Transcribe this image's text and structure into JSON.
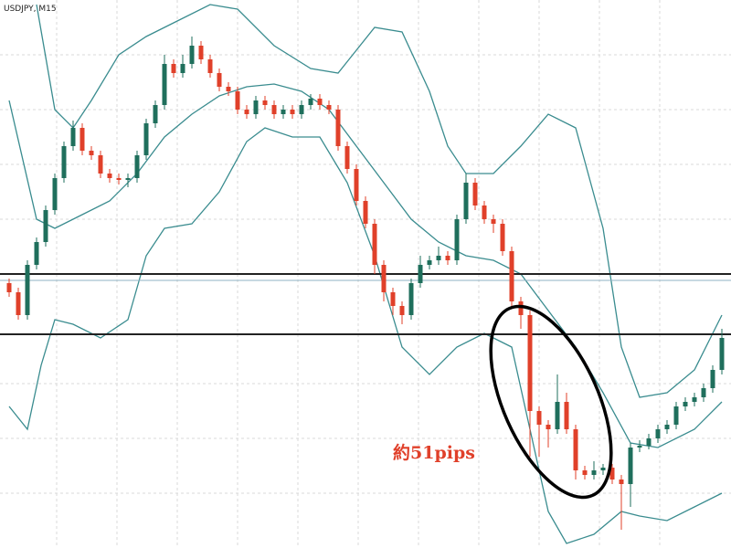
{
  "chart_data": {
    "type": "candlestick",
    "title": "USDJPY, M15",
    "annotation": "約51pips",
    "annotation_color": "#e0402a",
    "xlim": [
      0,
      80
    ],
    "ylim": [
      0,
      600
    ],
    "up_color": "#1f6f5c",
    "down_color": "#e0402a",
    "open": [
      290,
      280,
      255,
      310,
      335,
      370,
      405,
      440,
      460,
      435,
      430,
      410,
      405,
      403,
      405,
      430,
      465,
      485,
      530,
      520,
      530,
      550,
      535,
      520,
      505,
      500,
      480,
      475,
      490,
      485,
      475,
      480,
      475,
      485,
      492,
      485,
      480,
      440,
      415,
      380,
      355,
      310,
      280,
      265,
      255,
      290,
      310,
      315,
      320,
      315,
      360,
      400,
      375,
      360,
      355,
      325,
      270,
      255,
      150,
      135,
      130,
      160,
      130,
      85,
      80,
      85,
      88,
      75,
      70,
      110,
      112,
      120,
      130,
      135,
      155,
      160,
      165,
      175,
      195
    ],
    "high": [
      295,
      285,
      315,
      340,
      375,
      410,
      445,
      468,
      465,
      440,
      435,
      415,
      410,
      410,
      435,
      470,
      490,
      540,
      535,
      540,
      560,
      555,
      540,
      525,
      510,
      505,
      485,
      495,
      495,
      490,
      485,
      485,
      490,
      497,
      497,
      490,
      485,
      445,
      420,
      385,
      360,
      315,
      285,
      270,
      295,
      320,
      320,
      330,
      325,
      365,
      410,
      405,
      380,
      365,
      360,
      330,
      275,
      260,
      155,
      140,
      190,
      170,
      135,
      90,
      95,
      92,
      92,
      80,
      115,
      118,
      125,
      135,
      140,
      160,
      165,
      170,
      180,
      200,
      240
    ],
    "low": [
      275,
      250,
      250,
      305,
      330,
      365,
      400,
      435,
      430,
      425,
      405,
      400,
      398,
      395,
      400,
      425,
      460,
      480,
      515,
      515,
      525,
      530,
      515,
      500,
      495,
      475,
      470,
      470,
      480,
      470,
      470,
      470,
      470,
      480,
      480,
      475,
      435,
      410,
      375,
      350,
      300,
      270,
      255,
      245,
      250,
      285,
      305,
      310,
      310,
      310,
      355,
      370,
      355,
      345,
      320,
      265,
      240,
      100,
      100,
      110,
      125,
      125,
      75,
      75,
      75,
      80,
      70,
      20,
      45,
      105,
      108,
      115,
      125,
      130,
      150,
      155,
      160,
      170,
      190
    ],
    "close": [
      280,
      255,
      310,
      335,
      370,
      405,
      440,
      460,
      435,
      430,
      410,
      405,
      403,
      405,
      430,
      465,
      485,
      530,
      520,
      530,
      550,
      535,
      520,
      505,
      500,
      480,
      475,
      490,
      485,
      475,
      480,
      475,
      485,
      492,
      485,
      480,
      440,
      415,
      380,
      355,
      310,
      280,
      265,
      255,
      290,
      310,
      315,
      320,
      315,
      360,
      400,
      375,
      360,
      355,
      325,
      270,
      255,
      150,
      135,
      130,
      160,
      130,
      85,
      80,
      85,
      88,
      75,
      70,
      110,
      112,
      120,
      130,
      135,
      155,
      160,
      165,
      175,
      195,
      230
    ],
    "series": [
      {
        "color": "#3a8c8f",
        "x": [
          4,
          6,
          8,
          10,
          13,
          16,
          19,
          23,
          26,
          30,
          34,
          37,
          39,
          41,
          44,
          47,
          49,
          51,
          54,
          57,
          60,
          63,
          66,
          68,
          70,
          73,
          76,
          79
        ],
        "values": [
          595,
          480,
          460,
          490,
          540,
          560,
          575,
          595,
          590,
          550,
          525,
          520,
          545,
          570,
          565,
          500,
          440,
          410,
          410,
          440,
          475,
          460,
          350,
          220,
          165,
          170,
          195,
          255
        ]
      },
      {
        "color": "#3a8c8f",
        "x": [
          1,
          4,
          6,
          9,
          12,
          15,
          18,
          21,
          24,
          27,
          30,
          33,
          36,
          39,
          42,
          45,
          48,
          51,
          54,
          57,
          60,
          63,
          66,
          69,
          72,
          76,
          79
        ],
        "values": [
          490,
          360,
          350,
          365,
          380,
          410,
          450,
          475,
          495,
          505,
          508,
          500,
          480,
          440,
          400,
          360,
          335,
          320,
          315,
          300,
          260,
          220,
          170,
          115,
          110,
          130,
          160
        ]
      },
      {
        "color": "#3a8c8f",
        "x": [
          1,
          3,
          4.5,
          6,
          8,
          11,
          14,
          16,
          18,
          21,
          24,
          27,
          29,
          32,
          35,
          38,
          41,
          44,
          47,
          50,
          53,
          56,
          58,
          60,
          62,
          65,
          68,
          70,
          73,
          76,
          79
        ],
        "values": [
          155,
          130,
          200,
          250,
          245,
          230,
          250,
          320,
          350,
          355,
          390,
          445,
          460,
          450,
          450,
          400,
          320,
          220,
          190,
          220,
          235,
          220,
          130,
          40,
          5,
          15,
          40,
          35,
          30,
          45,
          60
        ]
      }
    ],
    "hlines": [
      {
        "value": 300,
        "color": "#222222"
      },
      {
        "value": 293,
        "color": "#8fb3c4"
      },
      {
        "value": 234,
        "color": "#222222"
      }
    ]
  }
}
